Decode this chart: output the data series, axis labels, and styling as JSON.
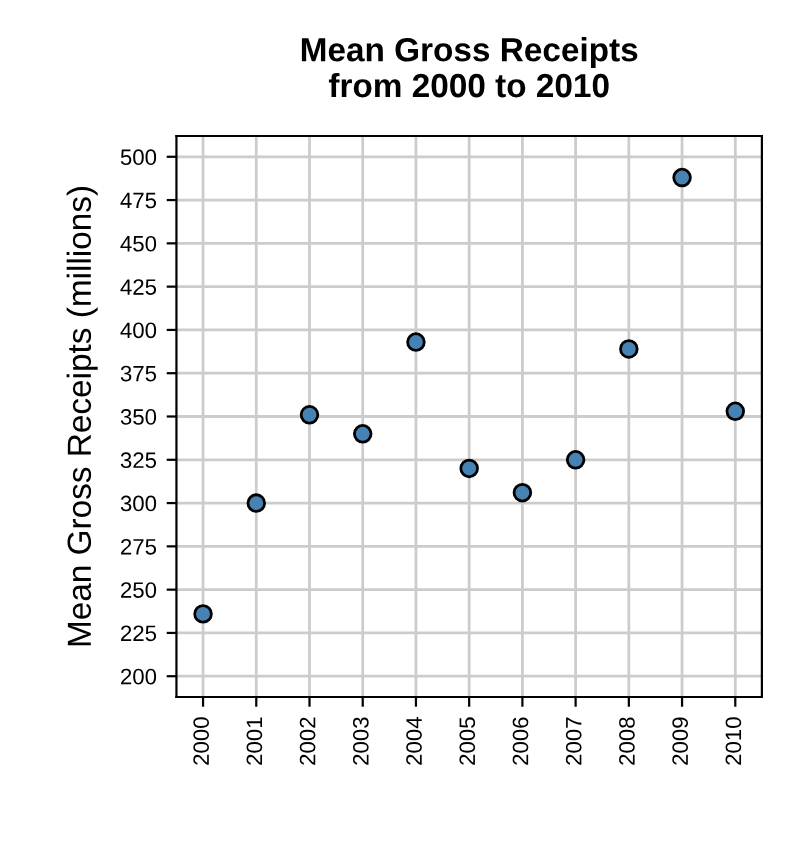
{
  "chart_data": {
    "type": "scatter",
    "title": "Mean Gross Receipts\nfrom 2000 to 2010",
    "ylabel": "Mean Gross Receipts (millions)",
    "categories": [
      "2000",
      "2001",
      "2002",
      "2003",
      "2004",
      "2005",
      "2006",
      "2007",
      "2008",
      "2009",
      "2010"
    ],
    "series": [
      {
        "color": "#4682b4",
        "values": [
          236,
          300,
          351,
          340,
          393,
          320,
          306,
          325,
          389,
          488,
          353
        ]
      }
    ],
    "ylim": [
      188,
      512
    ],
    "yticks": [
      200,
      225,
      250,
      275,
      300,
      325,
      350,
      375,
      400,
      425,
      450,
      475,
      500
    ],
    "grid": true,
    "marker": "circle"
  }
}
